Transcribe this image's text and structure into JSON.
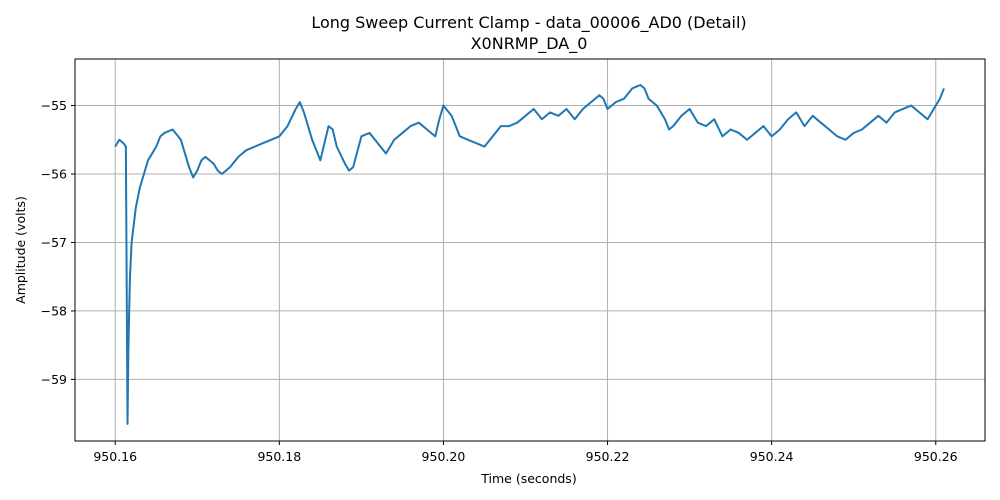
{
  "chart_data": {
    "type": "line",
    "title": "Long Sweep Current Clamp - data_00006_AD0 (Detail)",
    "subtitle": "X0NRMP_DA_0",
    "xlabel": "Time (seconds)",
    "ylabel": "Amplitude (volts)",
    "xlim": [
      950.1551,
      950.266
    ],
    "ylim": [
      -59.9,
      -54.32
    ],
    "xticks": [
      950.16,
      950.18,
      950.2,
      950.22,
      950.24,
      950.26
    ],
    "xtick_labels": [
      "950.16",
      "950.18",
      "950.20",
      "950.22",
      "950.24",
      "950.26"
    ],
    "yticks": [
      -59,
      -58,
      -57,
      -56,
      -55
    ],
    "ytick_labels": [
      "−59",
      "−58",
      "−57",
      "−56",
      "−55"
    ],
    "grid": true,
    "line_color": "#1f77b4",
    "series": [
      {
        "x": [
          950.16,
          950.1605,
          950.161,
          950.1613,
          950.1615,
          950.1616,
          950.1617,
          950.1618,
          950.162,
          950.1625,
          950.163,
          950.1635,
          950.164,
          950.165,
          950.1655,
          950.166,
          950.167,
          950.168,
          950.169,
          950.1695,
          950.17,
          950.1705,
          950.171,
          950.172,
          950.1725,
          950.173,
          950.1735,
          950.174,
          950.175,
          950.176,
          950.177,
          950.178,
          950.179,
          950.18,
          950.181,
          950.182,
          950.1825,
          950.183,
          950.1835,
          950.184,
          950.185,
          950.186,
          950.1865,
          950.187,
          950.188,
          950.1885,
          950.189,
          950.19,
          950.191,
          950.192,
          950.193,
          950.194,
          950.195,
          950.196,
          950.197,
          950.198,
          950.199,
          950.1995,
          950.2,
          950.201,
          950.202,
          950.203,
          950.204,
          950.205,
          950.206,
          950.207,
          950.208,
          950.209,
          950.21,
          950.211,
          950.212,
          950.213,
          950.214,
          950.215,
          950.216,
          950.217,
          950.218,
          950.219,
          950.2195,
          950.22,
          950.221,
          950.222,
          950.223,
          950.224,
          950.2245,
          950.225,
          950.226,
          950.227,
          950.2275,
          950.228,
          950.229,
          950.23,
          950.231,
          950.232,
          950.233,
          950.234,
          950.235,
          950.236,
          950.237,
          950.238,
          950.239,
          950.24,
          950.241,
          950.242,
          950.243,
          950.244,
          950.245,
          950.246,
          950.247,
          950.248,
          950.249,
          950.25,
          950.251,
          950.252,
          950.253,
          950.254,
          950.255,
          950.256,
          950.257,
          950.258,
          950.259,
          950.26,
          950.2605,
          950.261
        ],
        "y": [
          -55.6,
          -55.5,
          -55.55,
          -55.6,
          -59.65,
          -58.6,
          -58.0,
          -57.5,
          -57.0,
          -56.5,
          -56.2,
          -56.0,
          -55.8,
          -55.6,
          -55.45,
          -55.4,
          -55.35,
          -55.5,
          -55.9,
          -56.05,
          -55.95,
          -55.8,
          -55.75,
          -55.85,
          -55.95,
          -56.0,
          -55.95,
          -55.9,
          -55.75,
          -55.65,
          -55.6,
          -55.55,
          -55.5,
          -55.45,
          -55.3,
          -55.05,
          -54.95,
          -55.1,
          -55.3,
          -55.5,
          -55.8,
          -55.3,
          -55.35,
          -55.6,
          -55.85,
          -55.95,
          -55.9,
          -55.45,
          -55.4,
          -55.55,
          -55.7,
          -55.5,
          -55.4,
          -55.3,
          -55.25,
          -55.35,
          -55.45,
          -55.2,
          -55.0,
          -55.15,
          -55.45,
          -55.5,
          -55.55,
          -55.6,
          -55.45,
          -55.3,
          -55.3,
          -55.25,
          -55.15,
          -55.05,
          -55.2,
          -55.1,
          -55.15,
          -55.05,
          -55.2,
          -55.05,
          -54.95,
          -54.85,
          -54.9,
          -55.05,
          -54.95,
          -54.9,
          -54.75,
          -54.7,
          -54.75,
          -54.9,
          -55.0,
          -55.2,
          -55.35,
          -55.3,
          -55.15,
          -55.05,
          -55.25,
          -55.3,
          -55.2,
          -55.45,
          -55.35,
          -55.4,
          -55.5,
          -55.4,
          -55.3,
          -55.45,
          -55.35,
          -55.2,
          -55.1,
          -55.3,
          -55.15,
          -55.25,
          -55.35,
          -55.45,
          -55.5,
          -55.4,
          -55.35,
          -55.25,
          -55.15,
          -55.25,
          -55.1,
          -55.05,
          -55.0,
          -55.1,
          -55.2,
          -55.0,
          -54.9,
          -54.75
        ]
      }
    ]
  }
}
